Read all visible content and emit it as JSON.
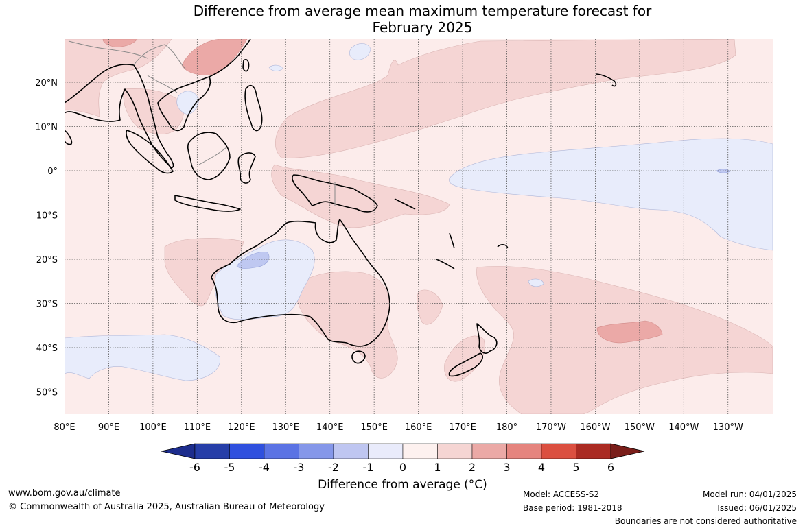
{
  "title": {
    "line1": "Difference from average mean maximum temperature forecast for",
    "line2": "February 2025"
  },
  "map": {
    "region": "Indian Ocean / Australia / Pacific",
    "longitude_labels": [
      "80°E",
      "90°E",
      "100°E",
      "110°E",
      "120°E",
      "130°E",
      "140°E",
      "150°E",
      "160°E",
      "170°E",
      "180°",
      "170°W",
      "160°W",
      "150°W",
      "140°W",
      "130°W"
    ],
    "latitude_labels": [
      "20°N",
      "10°N",
      "0°",
      "10°S",
      "20°S",
      "30°S",
      "40°S",
      "50°S"
    ],
    "colors": {
      "ocean_background": "#fceceb",
      "anomaly_0_1": "#fceceb",
      "anomaly_1_2": "#f5d5d4",
      "anomaly_2_3": "#eba9a7",
      "anomaly_neg1_0": "#e8ecfb",
      "anomaly_neg2_neg1": "#bfc8f1",
      "coastline": "#000000",
      "gridline": "#555555"
    }
  },
  "colorbar": {
    "tick_labels": [
      "-6",
      "-5",
      "-4",
      "-3",
      "-2",
      "-1",
      "0",
      "1",
      "2",
      "3",
      "4",
      "5",
      "6"
    ],
    "colors": [
      "#1d2d8d",
      "#263ea8",
      "#2f50de",
      "#5b73e4",
      "#8597e9",
      "#bfc6f1",
      "#e9ebfb",
      "#fdf1ef",
      "#f5d5d3",
      "#eba9a6",
      "#e5847e",
      "#db4f40",
      "#aa2a22",
      "#7a1e1a"
    ],
    "title": "Difference from average (°C)"
  },
  "footer": {
    "website": "www.bom.gov.au/climate",
    "copyright": "© Commonwealth of Australia 2025, Australian Bureau of Meteorology",
    "model": "Model: ACCESS-S2",
    "base_period": "Base period: 1981-2018",
    "model_run": "Model run: 04/01/2025",
    "issued": "Issued: 06/01/2025",
    "disclaimer": "Boundaries are not considered authoritative"
  }
}
